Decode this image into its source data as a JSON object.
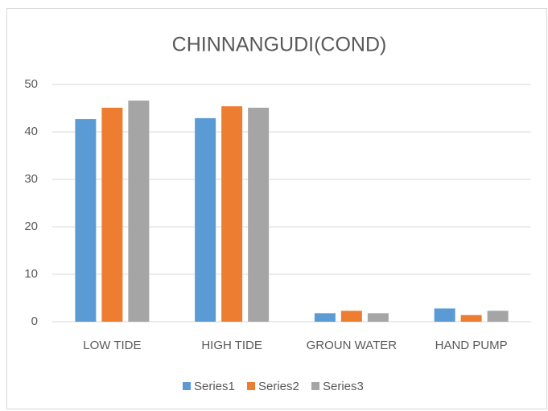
{
  "chart_data": {
    "type": "bar",
    "title": "CHINNANGUDI(COND)",
    "categories": [
      "LOW TIDE",
      "HIGH TIDE",
      "GROUN WATER",
      "HAND PUMP"
    ],
    "series": [
      {
        "name": "Series1",
        "color": "#5b9bd5",
        "values": [
          42.7,
          42.9,
          1.8,
          2.8
        ]
      },
      {
        "name": "Series2",
        "color": "#ed7d31",
        "values": [
          45.1,
          45.4,
          2.3,
          1.4
        ]
      },
      {
        "name": "Series3",
        "color": "#a5a5a5",
        "values": [
          46.6,
          45.1,
          1.8,
          2.3
        ]
      }
    ],
    "ylim": [
      0,
      50
    ],
    "yticks": [
      0,
      10,
      20,
      30,
      40,
      50
    ],
    "grid": true,
    "legend": "bottom"
  }
}
